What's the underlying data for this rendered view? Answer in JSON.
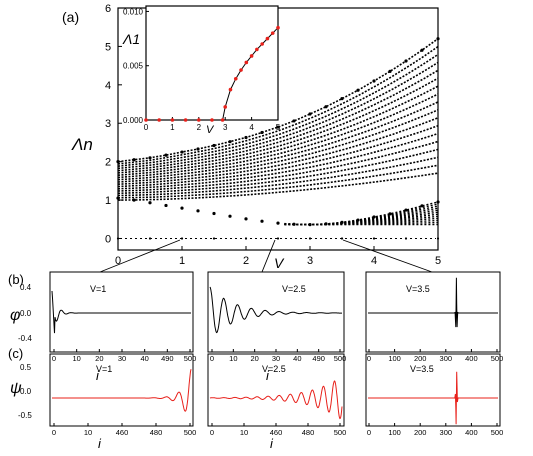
{
  "chart_data": [
    {
      "id": "main",
      "type": "scatter",
      "panel_label": "(a)",
      "xlabel": "V",
      "ylabel": "Λn",
      "xlim": [
        0,
        5
      ],
      "ylim": [
        -0.3,
        6
      ],
      "xticks": [
        "0",
        "1",
        "2",
        "3",
        "4",
        "5"
      ],
      "yticks": [
        "0",
        "1",
        "2",
        "3",
        "4",
        "5",
        "6"
      ],
      "grid": false,
      "series": [
        {
          "values_description": "",
          "x": [
            0,
            0.25,
            0.5,
            0.75,
            1,
            1.25,
            1.5,
            1.75,
            2,
            2.25,
            2.5,
            2.75,
            3,
            3.25,
            3.5,
            3.75,
            4,
            4.25,
            4.5,
            4.75,
            5
          ],
          "y": [
            2.0,
            2.05,
            2.1,
            2.17,
            2.25,
            2.33,
            2.42,
            2.52,
            2.63,
            2.76,
            2.9,
            3.06,
            3.24,
            3.43,
            3.64,
            3.86,
            4.1,
            4.35,
            4.62,
            4.9,
            5.2
          ]
        },
        {
          "x": [
            0,
            0.25,
            0.5,
            0.75,
            1,
            1.25,
            1.5,
            1.75,
            2,
            2.25,
            2.5,
            2.75,
            3,
            3.25,
            3.5,
            3.75,
            4,
            4.25,
            4.5,
            4.75,
            5
          ],
          "y": [
            1.05,
            1.0,
            0.93,
            0.86,
            0.79,
            0.72,
            0.65,
            0.58,
            0.51,
            0.45,
            0.4,
            0.37,
            0.36,
            0.38,
            0.42,
            0.48,
            0.56,
            0.64,
            0.74,
            0.85,
            0.95
          ]
        },
        {
          "x": [
            0,
            0.5,
            1,
            1.5,
            2,
            2.5,
            3,
            3.5,
            4,
            4.5,
            5
          ],
          "y": [
            0,
            0,
            0,
            0,
            0,
            0,
            0,
            0,
            0,
            0,
            0
          ]
        }
      ]
    },
    {
      "id": "inset",
      "type": "line",
      "xlabel": "V",
      "ylabel": "Λ1",
      "xlim": [
        0,
        5
      ],
      "ylim": [
        0,
        0.01
      ],
      "xticks": [
        "0",
        "1",
        "2",
        "3",
        "4",
        "5"
      ],
      "yticks": [
        "0.000",
        "0.005",
        "0.010"
      ],
      "series": [
        {
          "x": [
            0,
            0.5,
            1,
            1.5,
            2,
            2.5,
            2.9,
            3.0,
            3.2,
            3.4,
            3.6,
            3.8,
            4.0,
            4.2,
            4.4,
            4.6,
            4.8,
            5.0
          ],
          "y": [
            0,
            0,
            0,
            0,
            0,
            0,
            0,
            0.0012,
            0.0028,
            0.0038,
            0.0046,
            0.0053,
            0.0059,
            0.0065,
            0.007,
            0.0075,
            0.008,
            0.0085
          ]
        }
      ]
    },
    {
      "id": "b1",
      "type": "line",
      "panel_label": "(b)",
      "ylabel": "φ",
      "xlabel": "i",
      "annotation": "V=1",
      "xticks": [
        "0",
        "10",
        "20",
        "30",
        "40",
        "490",
        "500"
      ],
      "yticks": [
        "0.4",
        "0.0",
        "-0.4"
      ],
      "ylim": [
        -0.5,
        0.5
      ]
    },
    {
      "id": "b2",
      "type": "line",
      "xlabel": "i",
      "annotation": "V=2.5",
      "xticks": [
        "0",
        "10",
        "20",
        "30",
        "40",
        "490",
        "500"
      ],
      "ylim": [
        -0.5,
        0.6
      ]
    },
    {
      "id": "b3",
      "type": "line",
      "xlabel": "i",
      "annotation": "V=3.5",
      "xticks": [
        "0",
        "100",
        "200",
        "300",
        "400",
        "500"
      ],
      "ylim": [
        -0.5,
        0.5
      ]
    },
    {
      "id": "c1",
      "type": "line",
      "panel_label": "(c)",
      "ylabel": "ψ",
      "xlabel": "i",
      "annotation": "V=1",
      "xticks": [
        "0",
        "10",
        "460",
        "480",
        "500"
      ],
      "yticks": [
        "0.5",
        "0.0",
        "-0.5"
      ],
      "ylim": [
        -0.6,
        0.6
      ]
    },
    {
      "id": "c2",
      "type": "line",
      "xlabel": "i",
      "annotation": "V=2.5",
      "xticks": [
        "0",
        "10",
        "460",
        "480",
        "500"
      ],
      "ylim": [
        -0.6,
        0.6
      ]
    },
    {
      "id": "c3",
      "type": "line",
      "xlabel": "i",
      "annotation": "V=3.5",
      "xticks": [
        "0",
        "100",
        "200",
        "300",
        "400",
        "500"
      ],
      "ylim": [
        -0.6,
        0.6
      ]
    }
  ],
  "colors": {
    "ink": "#000000",
    "accent": "#e8201a"
  }
}
